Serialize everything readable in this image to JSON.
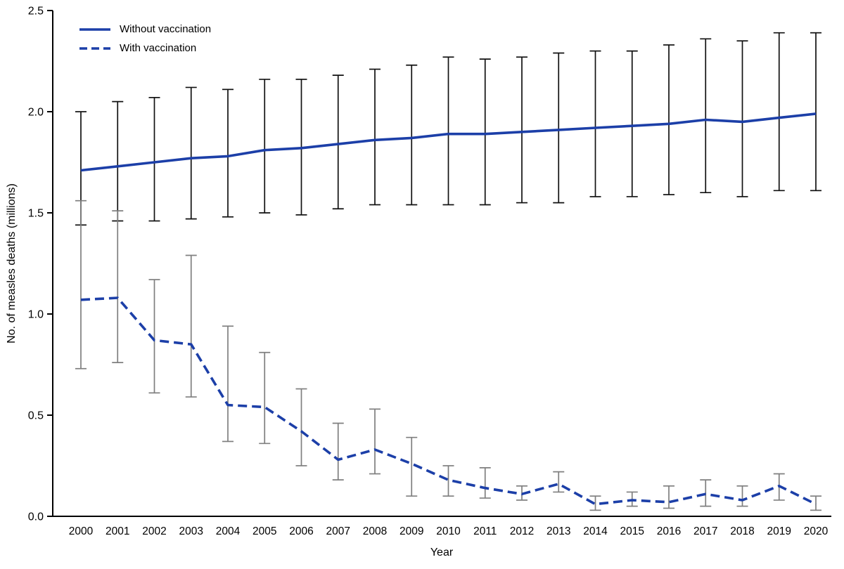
{
  "chart_data": {
    "type": "line",
    "title": "",
    "xlabel": "Year",
    "ylabel": "No. of measles deaths (millions)",
    "ylim": [
      0,
      2.5
    ],
    "yticks": [
      0.0,
      0.5,
      1.0,
      1.5,
      2.0,
      2.5
    ],
    "x": [
      2000,
      2001,
      2002,
      2003,
      2004,
      2005,
      2006,
      2007,
      2008,
      2009,
      2010,
      2011,
      2012,
      2013,
      2014,
      2015,
      2016,
      2017,
      2018,
      2019,
      2020
    ],
    "legend_position": "top-left",
    "grid": false,
    "series": [
      {
        "name": "Without vaccination",
        "style": "solid",
        "color": "#1c3fa8",
        "error_color": "#111111",
        "values": [
          1.71,
          1.73,
          1.75,
          1.77,
          1.78,
          1.81,
          1.82,
          1.84,
          1.86,
          1.87,
          1.89,
          1.89,
          1.9,
          1.91,
          1.92,
          1.93,
          1.94,
          1.96,
          1.95,
          1.97,
          1.99
        ],
        "lower": [
          1.44,
          1.46,
          1.46,
          1.47,
          1.48,
          1.5,
          1.49,
          1.52,
          1.54,
          1.54,
          1.54,
          1.54,
          1.55,
          1.55,
          1.58,
          1.58,
          1.59,
          1.6,
          1.58,
          1.61,
          1.61
        ],
        "upper": [
          2.0,
          2.05,
          2.07,
          2.12,
          2.11,
          2.16,
          2.16,
          2.18,
          2.21,
          2.23,
          2.27,
          2.26,
          2.27,
          2.29,
          2.3,
          2.3,
          2.33,
          2.36,
          2.35,
          2.39,
          2.39
        ]
      },
      {
        "name": "With vaccination",
        "style": "dashed",
        "color": "#1c3fa8",
        "error_color": "#7f7f7f",
        "values": [
          1.07,
          1.08,
          0.87,
          0.85,
          0.55,
          0.54,
          0.42,
          0.28,
          0.33,
          0.26,
          0.18,
          0.14,
          0.11,
          0.16,
          0.06,
          0.08,
          0.07,
          0.11,
          0.08,
          0.15,
          0.06
        ],
        "lower": [
          0.73,
          0.76,
          0.61,
          0.59,
          0.37,
          0.36,
          0.25,
          0.18,
          0.21,
          0.1,
          0.1,
          0.09,
          0.08,
          0.12,
          0.03,
          0.05,
          0.04,
          0.05,
          0.05,
          0.08,
          0.03
        ],
        "upper": [
          1.56,
          1.51,
          1.17,
          1.29,
          0.94,
          0.81,
          0.63,
          0.46,
          0.53,
          0.39,
          0.25,
          0.24,
          0.15,
          0.22,
          0.1,
          0.12,
          0.15,
          0.18,
          0.15,
          0.21,
          0.1
        ]
      }
    ]
  }
}
